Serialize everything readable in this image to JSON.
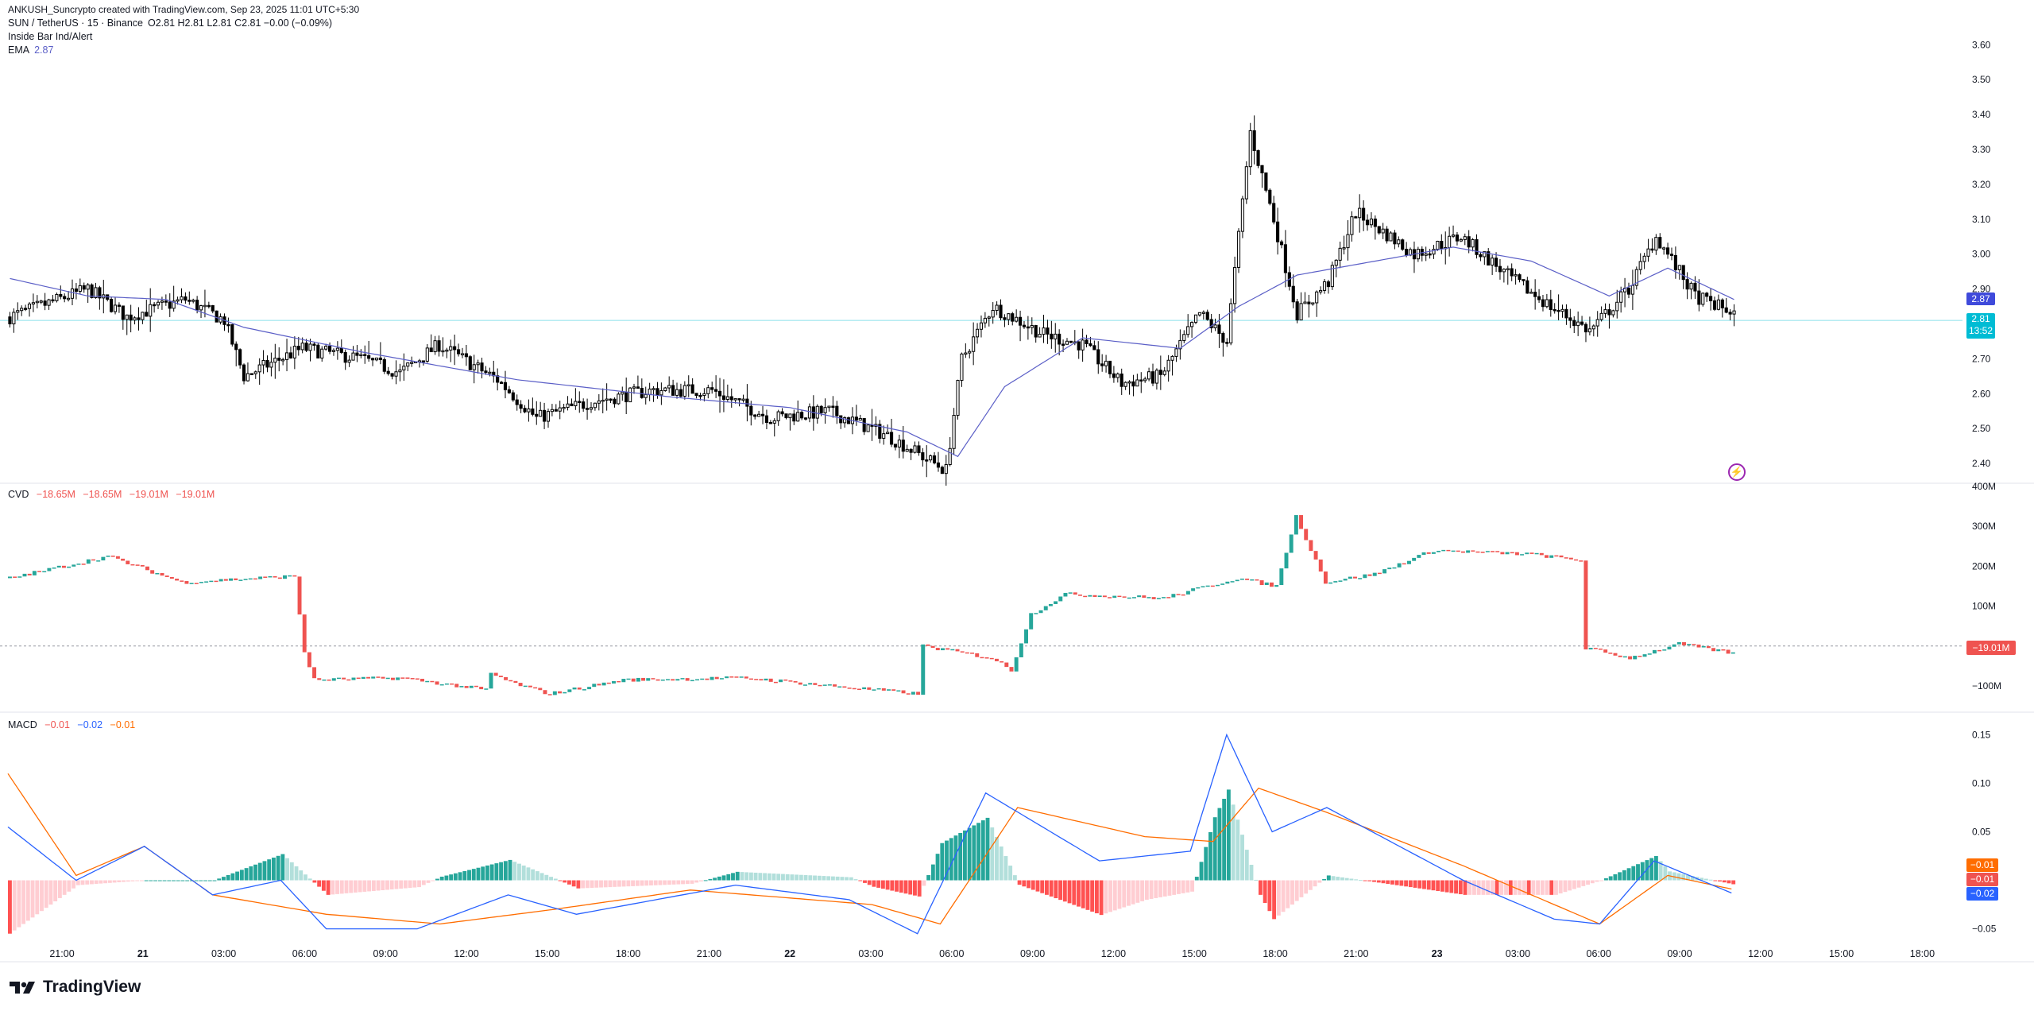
{
  "header": {
    "created_line": "ANKUSH_Suncrypto created with TradingView.com, Sep 23, 2025 11:01 UTC+5:30",
    "symbol": "SUN / TetherUS · 15 · Binance",
    "ohlc": "O2.81 H2.81 L2.81 C2.81 −0.00 (−0.09%)",
    "indicator1": "Inside Bar Ind/Alert",
    "ema_label": "EMA",
    "ema_value": "2.87"
  },
  "cvd": {
    "label": "CVD",
    "values": [
      "−18.65M",
      "−18.65M",
      "−19.01M",
      "−19.01M"
    ],
    "last_tag": "−19.01M"
  },
  "macd": {
    "label": "MACD",
    "values": [
      "−0.01",
      "−0.02",
      "−0.01"
    ],
    "tags": [
      "−0.01",
      "−0.01",
      "−0.02"
    ]
  },
  "price_tags": {
    "ema": "2.87",
    "last": "2.81",
    "countdown": "13:52"
  },
  "brand": "TradingView",
  "colors": {
    "up": "#26a69a",
    "down": "#ef5350",
    "ema": "#5b5fc7",
    "macd": "#2962ff",
    "signal": "#ff6d00",
    "price_tag": "#00bcd4",
    "bar_black": "#000000"
  },
  "icons": [
    "tradingview-logo-icon",
    "lightning-icon"
  ],
  "chart_data": [
    {
      "type": "candlestick",
      "title": "SUN / TetherUS · 15 · Binance",
      "ylim": [
        2.35,
        3.66
      ],
      "y_ticks": [
        "3.60",
        "3.50",
        "3.40",
        "3.30",
        "3.20",
        "3.10",
        "3.00",
        "2.90",
        "2.80",
        "2.70",
        "2.60",
        "2.50",
        "2.40"
      ],
      "x_ticks": [
        "21:00",
        "21",
        "03:00",
        "06:00",
        "09:00",
        "12:00",
        "15:00",
        "18:00",
        "21:00",
        "22",
        "03:00",
        "06:00",
        "09:00",
        "12:00",
        "15:00",
        "18:00",
        "21:00",
        "23",
        "03:00",
        "06:00",
        "09:00",
        "12:00",
        "15:00",
        "18:00"
      ],
      "anchor_points": [
        [
          0,
          2.82
        ],
        [
          10,
          2.86
        ],
        [
          20,
          2.9
        ],
        [
          30,
          2.82
        ],
        [
          45,
          2.87
        ],
        [
          55,
          2.81
        ],
        [
          60,
          2.65
        ],
        [
          75,
          2.73
        ],
        [
          90,
          2.7
        ],
        [
          100,
          2.66
        ],
        [
          110,
          2.74
        ],
        [
          125,
          2.64
        ],
        [
          135,
          2.53
        ],
        [
          150,
          2.58
        ],
        [
          165,
          2.61
        ],
        [
          180,
          2.61
        ],
        [
          195,
          2.53
        ],
        [
          210,
          2.55
        ],
        [
          225,
          2.48
        ],
        [
          240,
          2.38
        ],
        [
          244,
          2.7
        ],
        [
          252,
          2.85
        ],
        [
          265,
          2.77
        ],
        [
          275,
          2.74
        ],
        [
          285,
          2.63
        ],
        [
          295,
          2.65
        ],
        [
          305,
          2.83
        ],
        [
          312,
          2.75
        ],
        [
          318,
          3.35
        ],
        [
          324,
          3.1
        ],
        [
          330,
          2.83
        ],
        [
          338,
          2.92
        ],
        [
          345,
          3.12
        ],
        [
          360,
          3.0
        ],
        [
          372,
          3.05
        ],
        [
          385,
          2.93
        ],
        [
          395,
          2.85
        ],
        [
          405,
          2.78
        ],
        [
          415,
          2.9
        ],
        [
          422,
          3.05
        ],
        [
          432,
          2.88
        ],
        [
          442,
          2.83
        ]
      ],
      "ema_anchor_points": [
        [
          0,
          2.93
        ],
        [
          20,
          2.88
        ],
        [
          40,
          2.87
        ],
        [
          60,
          2.79
        ],
        [
          90,
          2.72
        ],
        [
          130,
          2.64
        ],
        [
          170,
          2.59
        ],
        [
          200,
          2.56
        ],
        [
          230,
          2.49
        ],
        [
          243,
          2.42
        ],
        [
          255,
          2.62
        ],
        [
          275,
          2.76
        ],
        [
          300,
          2.73
        ],
        [
          315,
          2.85
        ],
        [
          330,
          2.94
        ],
        [
          345,
          2.97
        ],
        [
          370,
          3.02
        ],
        [
          390,
          2.98
        ],
        [
          410,
          2.88
        ],
        [
          425,
          2.96
        ],
        [
          442,
          2.87
        ]
      ]
    },
    {
      "type": "line",
      "title": "CVD",
      "ylim": [
        -160,
        400
      ],
      "y_ticks": [
        "400M",
        "300M",
        "200M",
        "100M",
        "0",
        "−100M"
      ],
      "anchor_points": [
        [
          0,
          170
        ],
        [
          20,
          225
        ],
        [
          35,
          160
        ],
        [
          58,
          175
        ],
        [
          60,
          -15
        ],
        [
          62,
          -85
        ],
        [
          80,
          -80
        ],
        [
          97,
          -110
        ],
        [
          98,
          -70
        ],
        [
          103,
          -95
        ],
        [
          110,
          -120
        ],
        [
          125,
          -85
        ],
        [
          150,
          -80
        ],
        [
          185,
          -120
        ],
        [
          186,
          0
        ],
        [
          200,
          -30
        ],
        [
          204,
          -60
        ],
        [
          208,
          80
        ],
        [
          215,
          130
        ],
        [
          235,
          120
        ],
        [
          250,
          170
        ],
        [
          258,
          150
        ],
        [
          262,
          325
        ],
        [
          268,
          160
        ],
        [
          278,
          180
        ],
        [
          290,
          240
        ],
        [
          310,
          230
        ],
        [
          320,
          215
        ],
        [
          321,
          -5
        ],
        [
          330,
          -30
        ],
        [
          340,
          5
        ],
        [
          352,
          -20
        ]
      ]
    },
    {
      "type": "line",
      "title": "MACD",
      "ylim": [
        -0.07,
        0.17
      ],
      "y_ticks": [
        "0.15",
        "0.10",
        "0.05",
        "0",
        "−0.05"
      ],
      "macd_anchor_points": [
        [
          0,
          0.055
        ],
        [
          15,
          0.0
        ],
        [
          30,
          0.035
        ],
        [
          45,
          -0.015
        ],
        [
          60,
          0.0
        ],
        [
          70,
          -0.05
        ],
        [
          90,
          -0.05
        ],
        [
          110,
          -0.015
        ],
        [
          125,
          -0.035
        ],
        [
          160,
          -0.005
        ],
        [
          185,
          -0.02
        ],
        [
          200,
          -0.055
        ],
        [
          215,
          0.09
        ],
        [
          240,
          0.02
        ],
        [
          260,
          0.03
        ],
        [
          268,
          0.15
        ],
        [
          278,
          0.05
        ],
        [
          290,
          0.075
        ],
        [
          320,
          0.0
        ],
        [
          340,
          -0.04
        ],
        [
          350,
          -0.045
        ],
        [
          362,
          0.02
        ],
        [
          380,
          -0.015
        ]
      ],
      "signal_anchor_points": [
        [
          0,
          0.11
        ],
        [
          15,
          0.005
        ],
        [
          30,
          0.035
        ],
        [
          45,
          -0.015
        ],
        [
          70,
          -0.035
        ],
        [
          95,
          -0.045
        ],
        [
          120,
          -0.03
        ],
        [
          150,
          -0.01
        ],
        [
          190,
          -0.025
        ],
        [
          205,
          -0.045
        ],
        [
          222,
          0.075
        ],
        [
          250,
          0.045
        ],
        [
          265,
          0.04
        ],
        [
          275,
          0.095
        ],
        [
          290,
          0.07
        ],
        [
          320,
          0.015
        ],
        [
          350,
          -0.045
        ],
        [
          365,
          0.005
        ],
        [
          380,
          -0.01
        ]
      ],
      "series": [
        {
          "name": "MACD",
          "color": "#2962ff"
        },
        {
          "name": "Signal",
          "color": "#ff6d00"
        },
        {
          "name": "Histogram"
        }
      ]
    }
  ]
}
